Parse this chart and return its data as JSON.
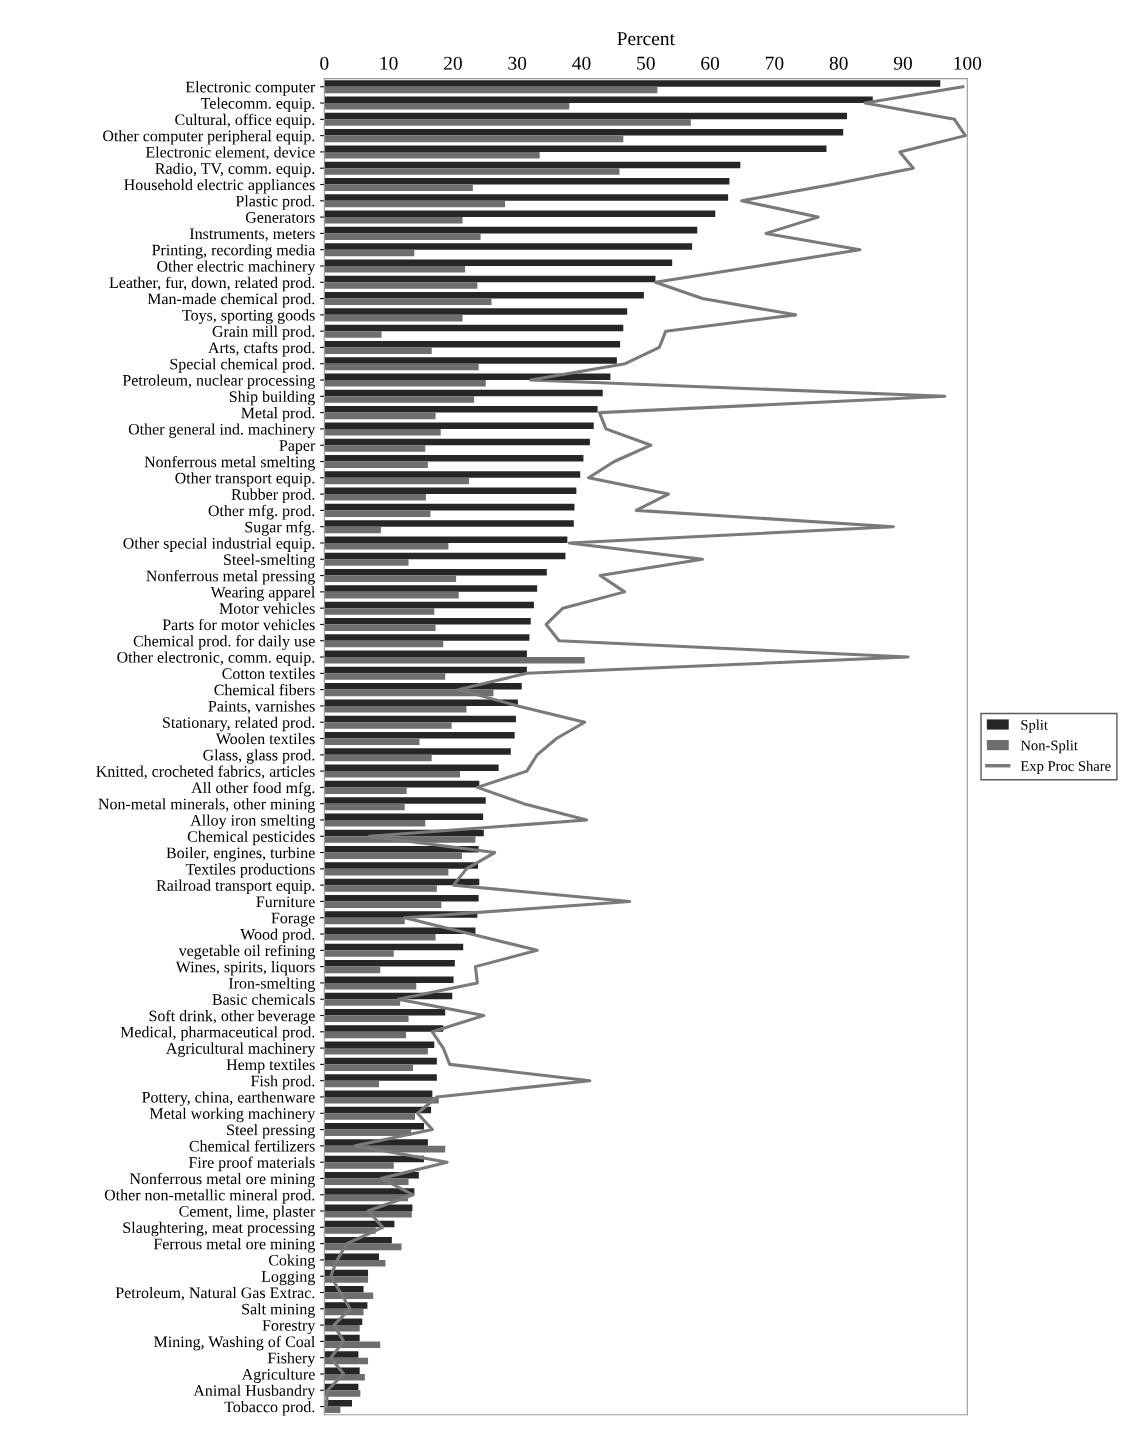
{
  "chart_data": {
    "type": "bar",
    "orientation": "horizontal",
    "xlabel": "Percent",
    "categories": [
      "Electronic computer",
      "Telecomm. equip.",
      "Cultural, office equip.",
      "Other computer peripheral equip.",
      "Electronic element, device",
      "Radio, TV, comm. equip.",
      "Household electric appliances",
      "Plastic prod.",
      "Generators",
      "Instruments, meters",
      "Printing, recording media",
      "Other electric machinery",
      "Leather, fur, down, related prod.",
      "Man-made chemical prod.",
      "Toys, sporting goods",
      "Grain mill prod.",
      "Arts, ctafts prod.",
      "Special chemical prod.",
      "Petroleum, nuclear processing",
      "Ship building",
      "Metal prod.",
      "Other general ind. machinery",
      "Paper",
      "Nonferrous metal smelting",
      "Other transport equip.",
      "Rubber prod.",
      "Other mfg. prod.",
      "Sugar mfg.",
      "Other special industrial equip.",
      "Steel-smelting",
      "Nonferrous metal pressing",
      "Wearing apparel",
      "Motor vehicles",
      "Parts for motor vehicles",
      "Chemical prod. for daily use",
      "Other electronic, comm. equip.",
      "Cotton textiles",
      "Chemical fibers",
      "Paints, varnishes",
      "Stationary, related prod.",
      "Woolen textiles",
      "Glass, glass prod.",
      "Knitted, crocheted fabrics, articles",
      "All other food mfg.",
      "Non-metal minerals, other mining",
      "Alloy iron smelting",
      "Chemical pesticides",
      "Boiler, engines, turbine",
      "Textiles productions",
      "Railroad transport equip.",
      "Furniture",
      "Forage",
      "Wood prod.",
      "vegetable oil refining",
      "Wines, spirits, liquors",
      "Iron-smelting",
      "Basic chemicals",
      "Soft drink, other beverage",
      "Medical, pharmaceutical prod.",
      "Agricultural machinery",
      "Hemp textiles",
      "Fish prod.",
      "Pottery, china, earthenware",
      "Metal working machinery",
      "Steel pressing",
      "Chemical fertilizers",
      "Fire proof materials",
      "Nonferrous metal ore mining",
      "Other non-metallic mineral prod.",
      "Cement, lime, plaster",
      "Slaughtering, meat processing",
      "Ferrous metal ore mining",
      "Coking",
      "Logging",
      "Petroleum, Natural Gas Extrac.",
      "Salt mining",
      "Forestry",
      "Mining, Washing of Coal",
      "Fishery",
      "Agriculture",
      "Animal Husbandry",
      "Tobacco prod."
    ],
    "series": [
      {
        "name": "Split",
        "color": "#262626",
        "values": [
          95.8,
          85.3,
          81.3,
          80.7,
          78.1,
          64.7,
          63,
          62.8,
          60.8,
          58,
          57.2,
          54.1,
          51.5,
          49.7,
          47.1,
          46.5,
          46,
          45.5,
          44.5,
          43.3,
          42.5,
          41.9,
          41.3,
          40.3,
          39.8,
          39.2,
          38.9,
          38.8,
          37.8,
          37.5,
          34.6,
          33.1,
          32.6,
          32.1,
          31.9,
          31.5,
          31.5,
          30.7,
          30.1,
          29.8,
          29.6,
          29,
          27.1,
          24.1,
          25.1,
          24.7,
          24.8,
          24,
          23.9,
          24.1,
          24,
          23.8,
          23.5,
          21.6,
          20.3,
          20.1,
          19.9,
          18.8,
          18.5,
          17.1,
          17.5,
          17.5,
          16.8,
          16.6,
          15.5,
          16.1,
          15.5,
          14.7,
          14,
          13.7,
          10.9,
          10.5,
          8.5,
          6.8,
          6.1,
          6.7,
          5.9,
          5.5,
          5.3,
          5.5,
          5.3,
          4.3
        ]
      },
      {
        "name": "Non-Split",
        "color": "#6e6e6e",
        "values": [
          51.8,
          38.1,
          57,
          46.5,
          33.5,
          45.9,
          23.1,
          28.1,
          21.5,
          24.3,
          14,
          21.9,
          23.8,
          26,
          21.5,
          8.9,
          16.7,
          24,
          25.1,
          23.3,
          17.3,
          18.1,
          15.7,
          16.1,
          22.5,
          15.8,
          16.5,
          8.8,
          19.3,
          13.1,
          20.5,
          20.9,
          17.1,
          17.3,
          18.5,
          40.5,
          18.8,
          26.3,
          22.1,
          19.8,
          14.8,
          16.7,
          21.1,
          12.8,
          12.5,
          15.7,
          23.5,
          21.4,
          19.3,
          17.5,
          18.2,
          12.5,
          17.3,
          10.8,
          8.7,
          14.3,
          11.8,
          13.1,
          12.7,
          16.1,
          13.8,
          8.5,
          17.8,
          14.1,
          13.5,
          18.8,
          10.8,
          13.1,
          13,
          13.6,
          8,
          12,
          9.5,
          6.8,
          7.6,
          6.1,
          5.5,
          8.7,
          6.8,
          6.3,
          5.6,
          2.5
        ]
      },
      {
        "name": "Exp Proc Share",
        "type": "line",
        "color": "#7a7a7a",
        "values": [
          99.3,
          84.1,
          98,
          99.7,
          89.5,
          91.6,
          79,
          64.9,
          76.8,
          68.7,
          83.3,
          67.5,
          51.5,
          58.8,
          73.3,
          53.1,
          52.1,
          46.8,
          32.1,
          96.5,
          42.8,
          43.8,
          50.8,
          45.1,
          41.1,
          53.5,
          48.5,
          88.5,
          38.1,
          58.8,
          42.9,
          46.7,
          37.1,
          34.5,
          36.5,
          90.8,
          31.5,
          20.8,
          30.1,
          40.5,
          36.1,
          33.1,
          31.5,
          23.8,
          31,
          40.8,
          7,
          26.5,
          22.1,
          20.1,
          47.5,
          12.5,
          22.8,
          33.1,
          23.5,
          23.8,
          11.5,
          24.8,
          16.8,
          18.5,
          19.5,
          41.3,
          17.5,
          14.5,
          16.8,
          4.8,
          19.1,
          8.8,
          13.8,
          6.8,
          9.1,
          3.5,
          2,
          1,
          2.5,
          4,
          1.5,
          3,
          1,
          3,
          0.5,
          0.3
        ]
      }
    ],
    "xlim": [
      0,
      100
    ],
    "xticks": [
      0,
      10,
      20,
      30,
      40,
      50,
      60,
      70,
      80,
      90,
      100
    ],
    "grid": false,
    "legend": "right"
  }
}
